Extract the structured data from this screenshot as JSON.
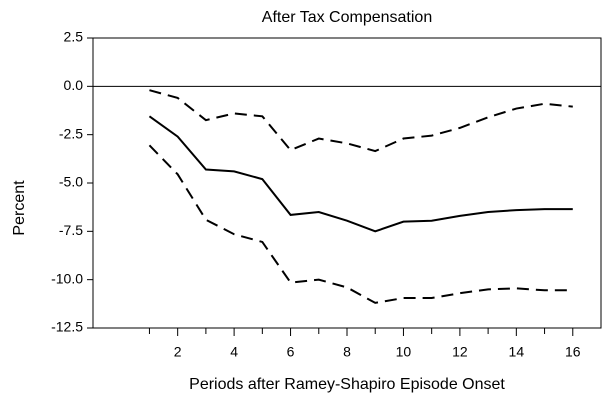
{
  "chart_data": {
    "type": "line",
    "title": "After Tax Compensation",
    "x_label": "Periods after Ramey-Shapiro Episode Onset",
    "y_label": "Percent",
    "x": [
      1,
      2,
      3,
      4,
      5,
      6,
      7,
      8,
      9,
      10,
      11,
      12,
      13,
      14,
      15,
      16
    ],
    "series": [
      {
        "color": "#000000",
        "dash": "solid",
        "values": [
          -1.55,
          -2.6,
          -4.3,
          -4.4,
          -4.8,
          -6.65,
          -6.5,
          -6.95,
          -7.5,
          -7.0,
          -6.95,
          -6.7,
          -6.5,
          -6.4,
          -6.35,
          -6.35
        ]
      },
      {
        "color": "#000000",
        "dash": "dashed",
        "values": [
          -0.2,
          -0.6,
          -1.75,
          -1.4,
          -1.55,
          -3.3,
          -2.7,
          -2.95,
          -3.35,
          -2.7,
          -2.55,
          -2.15,
          -1.6,
          -1.15,
          -0.9,
          -1.05
        ]
      },
      {
        "color": "#000000",
        "dash": "dashed",
        "values": [
          -3.05,
          -4.55,
          -6.9,
          -7.65,
          -8.05,
          -10.15,
          -10.0,
          -10.4,
          -11.2,
          -10.95,
          -10.95,
          -10.7,
          -10.5,
          -10.45,
          -10.55,
          -10.55
        ]
      }
    ],
    "xlim": [
      -1,
      17
    ],
    "xticks": [
      2,
      4,
      6,
      8,
      10,
      12,
      14,
      16
    ],
    "xminorticks": [
      1,
      3,
      5,
      7,
      9,
      11,
      13,
      15
    ],
    "ylim": [
      -12.5,
      2.5
    ],
    "yticks": [
      2.5,
      {
        "value": 0,
        "label": "0.0"
      },
      -2.5,
      {
        "value": -5,
        "label": "-5.0"
      },
      -7.5,
      {
        "value": -10,
        "label": "-10.0"
      },
      -12.5
    ],
    "zero_line": true,
    "grid": false
  }
}
